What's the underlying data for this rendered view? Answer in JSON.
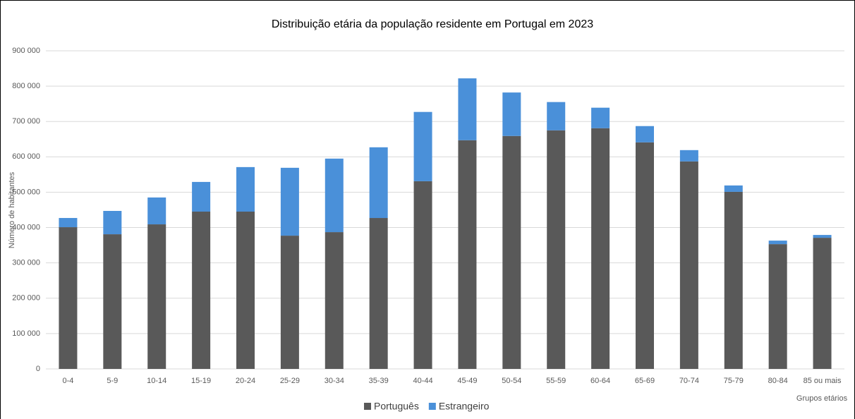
{
  "chart_data": {
    "type": "stacked_bar",
    "title": "Distribuição etária da população residente em Portugal em 2023",
    "y_label": "Número de habitantes",
    "x_label": "Grupos etários",
    "categories": [
      "0-4",
      "5-9",
      "10-14",
      "15-19",
      "20-24",
      "25-29",
      "30-34",
      "35-39",
      "40-44",
      "45-49",
      "50-54",
      "55-59",
      "60-64",
      "65-69",
      "70-74",
      "75-79",
      "80-84",
      "85 ou mais"
    ],
    "series": [
      {
        "name": "Português",
        "color": "#595959",
        "values": [
          401000,
          381000,
          409000,
          445000,
          445000,
          377000,
          387000,
          427000,
          531000,
          647000,
          659000,
          675000,
          681000,
          641000,
          587000,
          501000,
          353000,
          371000
        ]
      },
      {
        "name": "Estrangeiro",
        "color": "#4a90d9",
        "values": [
          26000,
          66000,
          76000,
          84000,
          126000,
          192000,
          208000,
          200000,
          196000,
          175000,
          123000,
          80000,
          58000,
          46000,
          32000,
          18000,
          10000,
          8000
        ]
      }
    ],
    "ylim": [
      0,
      900000
    ],
    "yticks": [
      0,
      {
        "value": 100000,
        "label": "100 000"
      },
      {
        "value": 200000,
        "label": "200 000"
      },
      {
        "value": 300000,
        "label": "300 000"
      },
      {
        "value": 400000,
        "label": "400 000"
      },
      {
        "value": 500000,
        "label": "500 000"
      },
      {
        "value": 600000,
        "label": "600 000"
      },
      {
        "value": 700000,
        "label": "700 000"
      },
      {
        "value": 800000,
        "label": "800 000"
      },
      {
        "value": 900000,
        "label": "900 000"
      }
    ],
    "grid": true
  }
}
